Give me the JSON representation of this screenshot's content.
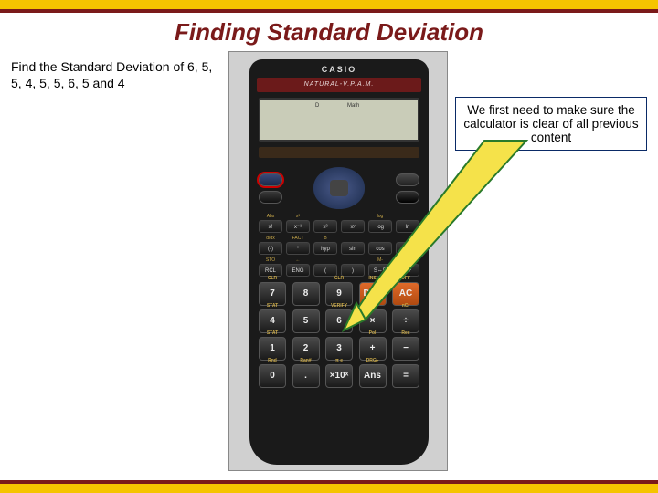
{
  "slide": {
    "title": "Finding Standard Deviation",
    "prompt": "Find the Standard Deviation of 6, 5, 5, 4, 5, 5, 6, 5 and 4",
    "callout": "We first need to make sure the calculator is clear of all previous content"
  },
  "calculator": {
    "brand": "CASIO",
    "model_text": "NATURAL-V.P.A.M.",
    "lcd": {
      "left": "D",
      "right": "Math"
    },
    "top_mini_labels": [
      "SHIFT",
      "ALPHA",
      "MODE SETUP",
      "ON"
    ],
    "fn_rows": [
      [
        {
          "sup": "Abs",
          "main": "x!"
        },
        {
          "sup": "x³",
          "main": "x⁻¹"
        },
        {
          "sup": "",
          "main": "x²"
        },
        {
          "sup": "",
          "main": "xʸ"
        },
        {
          "sup": "log",
          "main": "log"
        },
        {
          "sup": "",
          "main": "ln"
        }
      ],
      [
        {
          "sup": "d/dx",
          "main": "(-)"
        },
        {
          "sup": "FACT",
          "main": "°"
        },
        {
          "sup": "B",
          "main": "hyp"
        },
        {
          "sup": "",
          "main": "sin"
        },
        {
          "sup": "",
          "main": "cos"
        },
        {
          "sup": "",
          "main": "tan"
        }
      ],
      [
        {
          "sup": "STO",
          "main": "RCL"
        },
        {
          "sup": "←",
          "main": "ENG"
        },
        {
          "sup": "",
          "main": "("
        },
        {
          "sup": "",
          "main": ")"
        },
        {
          "sup": "M-",
          "main": "S⇔D"
        },
        {
          "sup": "M+",
          "main": "M+"
        }
      ]
    ],
    "numpad": [
      {
        "sup": "CLR",
        "main": "7"
      },
      {
        "sup": "",
        "main": "8"
      },
      {
        "sup": "CLR",
        "main": "9"
      },
      {
        "sup": "INS",
        "main": "DEL",
        "cls": "del"
      },
      {
        "sup": "OFF",
        "main": "AC",
        "cls": "ac"
      },
      {
        "sup": "STAT",
        "main": "4"
      },
      {
        "sup": "",
        "main": "5"
      },
      {
        "sup": "VERIFY",
        "main": "6"
      },
      {
        "sup": "nPr",
        "main": "×"
      },
      {
        "sup": "nCr",
        "main": "÷"
      },
      {
        "sup": "STAT",
        "main": "1"
      },
      {
        "sup": "",
        "main": "2"
      },
      {
        "sup": "",
        "main": "3"
      },
      {
        "sup": "Pol",
        "main": "+"
      },
      {
        "sup": "Rec",
        "main": "−"
      },
      {
        "sup": "Rnd",
        "main": "0"
      },
      {
        "sup": "Ran#",
        "main": "."
      },
      {
        "sup": "π e",
        "main": "×10ˣ"
      },
      {
        "sup": "DRG▸",
        "main": "Ans"
      },
      {
        "sup": "",
        "main": "="
      }
    ]
  },
  "style": {
    "accent_title": "#7a1a1a",
    "band": "#f5c400",
    "callout_border": "#0a2a66",
    "arrow_fill": "#f5e24a",
    "arrow_stroke": "#2a7a2a",
    "del_ac": "#d8601e"
  }
}
